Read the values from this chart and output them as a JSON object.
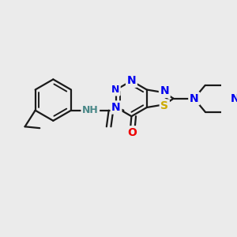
{
  "bg_color": "#ebebeb",
  "bond_color": "#1a1a1a",
  "bond_width": 1.6,
  "font_size": 10,
  "colors": {
    "N": "#0000ee",
    "O": "#ee0000",
    "S": "#ccaa00",
    "NH": "#4a8888",
    "C": "#1a1a1a"
  }
}
